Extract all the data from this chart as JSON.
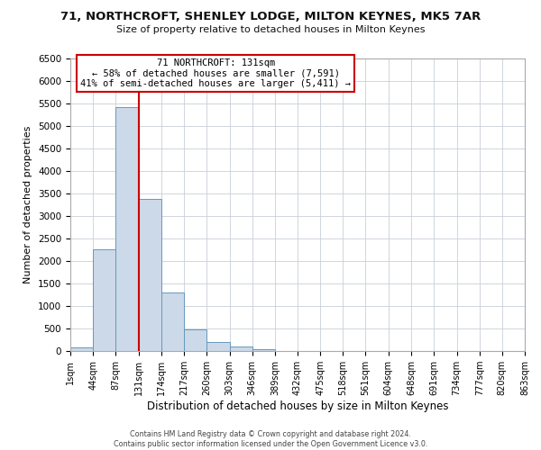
{
  "title": "71, NORTHCROFT, SHENLEY LODGE, MILTON KEYNES, MK5 7AR",
  "subtitle": "Size of property relative to detached houses in Milton Keynes",
  "xlabel": "Distribution of detached houses by size in Milton Keynes",
  "ylabel": "Number of detached properties",
  "bar_color": "#ccd9e8",
  "bar_edge_color": "#6699bb",
  "bin_edges": [
    1,
    44,
    87,
    131,
    174,
    217,
    260,
    303,
    346,
    389,
    432,
    475,
    518,
    561,
    604,
    648,
    691,
    734,
    777,
    820,
    863
  ],
  "bar_heights": [
    75,
    2270,
    5430,
    3380,
    1310,
    490,
    200,
    95,
    50,
    10,
    5,
    3,
    2,
    1,
    1,
    1,
    1,
    1,
    1,
    1
  ],
  "tick_labels": [
    "1sqm",
    "44sqm",
    "87sqm",
    "131sqm",
    "174sqm",
    "217sqm",
    "260sqm",
    "303sqm",
    "346sqm",
    "389sqm",
    "432sqm",
    "475sqm",
    "518sqm",
    "561sqm",
    "604sqm",
    "648sqm",
    "691sqm",
    "734sqm",
    "777sqm",
    "820sqm",
    "863sqm"
  ],
  "ylim": [
    0,
    6500
  ],
  "yticks": [
    0,
    500,
    1000,
    1500,
    2000,
    2500,
    3000,
    3500,
    4000,
    4500,
    5000,
    5500,
    6000,
    6500
  ],
  "vline_x": 131,
  "vline_color": "#cc0000",
  "annotation_title": "71 NORTHCROFT: 131sqm",
  "annotation_line1": "← 58% of detached houses are smaller (7,591)",
  "annotation_line2": "41% of semi-detached houses are larger (5,411) →",
  "annotation_box_color": "#ffffff",
  "annotation_box_edge": "#cc0000",
  "footer1": "Contains HM Land Registry data © Crown copyright and database right 2024.",
  "footer2": "Contains public sector information licensed under the Open Government Licence v3.0.",
  "background_color": "#ffffff",
  "grid_color": "#c8d0d8"
}
